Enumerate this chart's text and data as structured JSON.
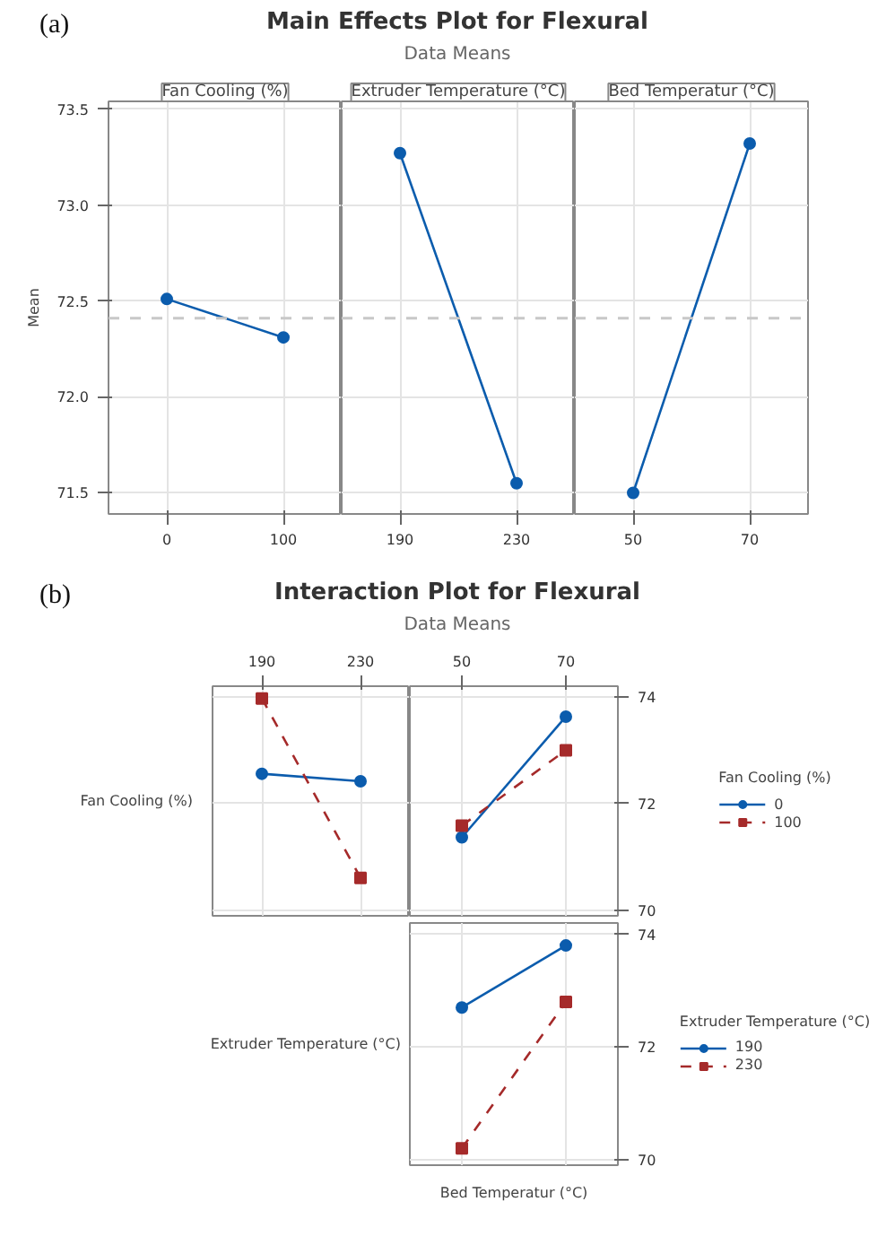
{
  "chart_data": [
    {
      "type": "line",
      "title": "Fan Cooling (%)",
      "annotations": [
        "(a)",
        "Main Effects Plot for Flexural",
        "Data Means"
      ],
      "ylabel": "Mean",
      "categories": [
        "0",
        "100"
      ],
      "series": [
        {
          "color": "#0b5cad",
          "values": [
            72.51,
            72.31
          ]
        }
      ],
      "ylim": [
        71.39,
        73.54
      ],
      "yticks": [
        71.5,
        {
          "value": 72,
          "label": "72.0"
        },
        72.5,
        {
          "value": 73,
          "label": "73.0"
        },
        73.5
      ],
      "ref_lines": [
        {
          "axis": "y",
          "value": 72.41,
          "color": "#c8c8c8",
          "line_style": "dashed"
        }
      ],
      "grid": true,
      "marker": "circle",
      "line_style": "solid"
    },
    {
      "type": "line",
      "title": "Extruder Temperature (°C)",
      "categories": [
        "190",
        "230"
      ],
      "series": [
        {
          "color": "#0b5cad",
          "values": [
            73.27,
            71.55
          ]
        }
      ],
      "ylim": [
        71.39,
        73.54
      ],
      "yticks": [
        71.5,
        72,
        72.5,
        73,
        73.5
      ],
      "tick_labels": "x",
      "ref_lines": [
        {
          "axis": "y",
          "value": 72.41,
          "color": "#c8c8c8",
          "line_style": "dashed"
        }
      ],
      "grid": true,
      "marker": "circle",
      "line_style": "solid"
    },
    {
      "type": "line",
      "title": "Bed Temperatur (°C)",
      "categories": [
        "50",
        "70"
      ],
      "series": [
        {
          "color": "#0b5cad",
          "values": [
            71.5,
            73.32
          ]
        }
      ],
      "ylim": [
        71.39,
        73.54
      ],
      "yticks": [
        71.5,
        72,
        72.5,
        73,
        73.5
      ],
      "tick_labels": "x",
      "ref_lines": [
        {
          "axis": "y",
          "value": 72.41,
          "color": "#c8c8c8",
          "line_style": "dashed"
        }
      ],
      "grid": true,
      "marker": "circle",
      "line_style": "solid"
    },
    {
      "type": "line",
      "annotations": [
        "(b)",
        "Interaction Plot for Flexural",
        "Data Means"
      ],
      "ylabel": "Fan Cooling (%)",
      "categories": [
        "190",
        "230"
      ],
      "series": [
        {
          "color": "#0b5cad",
          "values": [
            72.56,
            72.42
          ],
          "marker": "circle",
          "line_style": "solid"
        },
        {
          "color": "#a52a2a",
          "values": [
            73.97,
            70.61
          ],
          "marker": "square",
          "line_style": "dashed"
        }
      ],
      "ylim": [
        69.9,
        74.2
      ],
      "yticks": [
        70,
        72,
        74
      ],
      "tick_labels": "x",
      "grid": true
    },
    {
      "type": "line",
      "legend_title": "Fan Cooling (%)",
      "legend": "right",
      "categories": [
        "50",
        "70"
      ],
      "series": [
        {
          "name": "0",
          "color": "#0b5cad",
          "values": [
            71.37,
            73.63
          ],
          "marker": "circle",
          "line_style": "solid"
        },
        {
          "name": "100",
          "color": "#a52a2a",
          "values": [
            71.59,
            73.0
          ],
          "marker": "square",
          "line_style": "dashed"
        }
      ],
      "ylim": [
        69.9,
        74.2
      ],
      "yticks": [
        70,
        72,
        74
      ],
      "grid": true
    },
    {
      "type": "line",
      "legend_title": "Extruder Temperature (°C)",
      "legend": "right",
      "ylabel": "Extruder Temperature (°C)",
      "xlabel": "Bed Temperatur (°C)",
      "categories": [
        "50",
        "70"
      ],
      "series": [
        {
          "name": "190",
          "color": "#0b5cad",
          "values": [
            72.7,
            73.8
          ],
          "marker": "circle",
          "line_style": "solid"
        },
        {
          "name": "230",
          "color": "#a52a2a",
          "values": [
            70.2,
            72.8
          ],
          "marker": "square",
          "line_style": "dashed"
        }
      ],
      "ylim": [
        69.9,
        74.2
      ],
      "yticks": [
        70,
        72,
        74
      ],
      "tick_labels": "y",
      "grid": true
    }
  ]
}
